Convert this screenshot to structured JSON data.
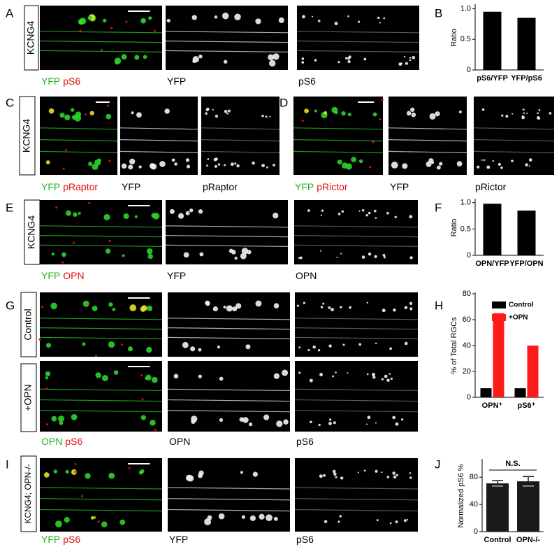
{
  "panels": [
    {
      "label": "A",
      "side_labels": [
        "KCNG4"
      ],
      "captions": [
        [
          "YFP",
          "pS6"
        ],
        [
          "YFP"
        ],
        [
          "pS6"
        ]
      ]
    },
    {
      "label": "C",
      "side_labels": [
        "KCNG4"
      ],
      "captions": [
        [
          "YFP",
          "pRaptor"
        ],
        [
          "YFP"
        ],
        [
          "pRaptor"
        ]
      ]
    },
    {
      "label": "D",
      "side_labels": [],
      "captions": [
        [
          "YFP",
          "pRictor"
        ],
        [
          "YFP"
        ],
        [
          "pRictor"
        ]
      ]
    },
    {
      "label": "E",
      "side_labels": [
        "KCNG4"
      ],
      "captions": [
        [
          "YFP",
          "OPN"
        ],
        [
          "YFP"
        ],
        [
          "OPN"
        ]
      ]
    },
    {
      "label": "G",
      "side_labels": [
        "Control",
        "+OPN"
      ],
      "captions": [
        [
          "OPN",
          "pS6"
        ],
        [
          "OPN"
        ],
        [
          "pS6"
        ]
      ]
    },
    {
      "label": "I",
      "side_labels": [
        "KCNG4; OPN-/-"
      ],
      "captions": [
        [
          "YFP",
          "pS6"
        ],
        [
          "YFP"
        ],
        [
          "pS6"
        ]
      ]
    }
  ],
  "chart_data": [
    {
      "type": "bar",
      "panel_label": "B",
      "ylabel": "Ratio",
      "categories": [
        "pS6/YFP",
        "YFP/pS6"
      ],
      "values": [
        0.95,
        0.85
      ],
      "color": "#000000",
      "ylim": [
        0,
        1.05
      ],
      "yticks": [
        0,
        0.5,
        {
          "value": 1,
          "label": "1.0"
        }
      ]
    },
    {
      "type": "bar",
      "panel_label": "F",
      "ylabel": "Ratio",
      "categories": [
        "OPN/YFP",
        "YFP/OPN"
      ],
      "values": [
        0.98,
        0.85
      ],
      "color": "#000000",
      "ylim": [
        0,
        1.05
      ],
      "yticks": [
        0,
        0.5,
        {
          "value": 1,
          "label": "1.0"
        }
      ]
    },
    {
      "type": "grouped-bar",
      "panel_label": "H",
      "ylabel": "% of Total RGCs",
      "categories": [
        "OPN⁺",
        "pS6⁺"
      ],
      "series": [
        {
          "name": "Control",
          "color": "#000000",
          "values": [
            7,
            7
          ]
        },
        {
          "name": "+OPN",
          "color": "#ff1a1a",
          "values": [
            65,
            40
          ]
        }
      ],
      "ylim": [
        0,
        80
      ],
      "yticks": [
        0,
        20,
        40,
        60,
        80
      ]
    },
    {
      "type": "error-bar",
      "panel_label": "J",
      "ylabel": "Normalized pS6 %",
      "categories": [
        "Control",
        "OPN-/-"
      ],
      "values": [
        71,
        74
      ],
      "errors": [
        4,
        7
      ],
      "color": "#1a1a1a",
      "ylim": [
        0,
        105
      ],
      "yticks": [
        0,
        40,
        80
      ],
      "annotation": "N.S."
    }
  ]
}
